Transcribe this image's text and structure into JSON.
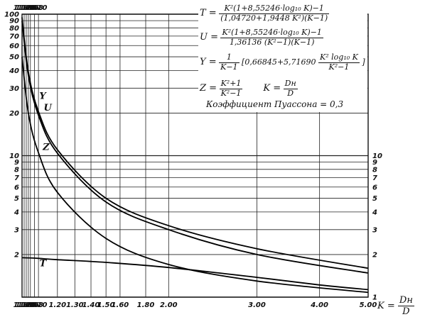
{
  "chart_data": {
    "type": "line",
    "x_scale": "log",
    "y_scale": "log",
    "xlim": [
      1.02,
      5.0
    ],
    "ylim": [
      1,
      100
    ],
    "grid": true,
    "x_ticks_bottom": [
      "1.02",
      "1.03",
      "1.04",
      "1.05",
      "1.06",
      "1.08",
      "1.10",
      "1.20",
      "1.30",
      "1.40",
      "1.50",
      "1.60",
      "1.80",
      "2.00",
      "3.00",
      "4.00",
      "5.00"
    ],
    "x_ticks_top": [
      "1.02",
      "1.03",
      "1.04",
      "1.05",
      "1.06",
      "1.08",
      "1.10"
    ],
    "y_ticks_left": [
      "100",
      "90",
      "80",
      "70",
      "60",
      "50",
      "40",
      "30",
      "20",
      "10",
      "9",
      "8",
      "7",
      "6",
      "5",
      "4",
      "3",
      "2"
    ],
    "y_ticks_right": [
      "10",
      "9",
      "8",
      "7",
      "6",
      "5",
      "4",
      "3",
      "2",
      "1"
    ],
    "series": [
      {
        "name": "U",
        "points": [
          [
            1.02,
            95
          ],
          [
            1.05,
            39
          ],
          [
            1.1,
            20.5
          ],
          [
            1.2,
            11
          ],
          [
            1.5,
            5.0
          ],
          [
            2.0,
            3.2
          ],
          [
            3.0,
            2.2
          ],
          [
            5.0,
            1.6
          ]
        ]
      },
      {
        "name": "Y",
        "points": [
          [
            1.02,
            90
          ],
          [
            1.05,
            37
          ],
          [
            1.1,
            19.3
          ],
          [
            1.2,
            10.4
          ],
          [
            1.5,
            4.7
          ],
          [
            2.0,
            3.0
          ],
          [
            3.0,
            2.0
          ],
          [
            5.0,
            1.48
          ]
        ]
      },
      {
        "name": "Z",
        "points": [
          [
            1.02,
            50
          ],
          [
            1.05,
            20
          ],
          [
            1.1,
            10.5
          ],
          [
            1.2,
            5.5
          ],
          [
            1.5,
            2.6
          ],
          [
            2.0,
            1.7
          ],
          [
            3.0,
            1.3
          ],
          [
            5.0,
            1.08
          ]
        ]
      },
      {
        "name": "T",
        "points": [
          [
            1.02,
            1.9
          ],
          [
            1.1,
            1.88
          ],
          [
            1.2,
            1.84
          ],
          [
            1.5,
            1.76
          ],
          [
            2.0,
            1.62
          ],
          [
            3.0,
            1.38
          ],
          [
            4.0,
            1.22
          ],
          [
            5.0,
            1.13
          ]
        ]
      }
    ],
    "annotations": {
      "legend": "Коэффициент Пуассона = 0,3",
      "x_axis_caption_lhs": "K =",
      "x_axis_caption_num": "Dн",
      "x_axis_caption_den": "D"
    }
  },
  "formulas": {
    "T": {
      "lhs": "T =",
      "num": "K²(1+8,55246·log₁₀ K)−1",
      "den": "(1,04720+1,9448 K²)(K−1)"
    },
    "U": {
      "lhs": "U =",
      "num": "K²(1+8,55246·log₁₀ K)−1",
      "den": "1,36136 (K²−1)(K−1)"
    },
    "Y": {
      "lhs": "Y =",
      "pre_num": "1",
      "pre_den": "K−1",
      "mid": "[0,66845+5,71690",
      "num": "K² log₁₀ K",
      "den": "K²−1",
      "post": "]"
    },
    "Z": {
      "lhs": "Z =",
      "num": "K²+1",
      "den": "K²−1"
    },
    "K": {
      "lhs": "K =",
      "num": "Dн",
      "den": "D"
    }
  }
}
